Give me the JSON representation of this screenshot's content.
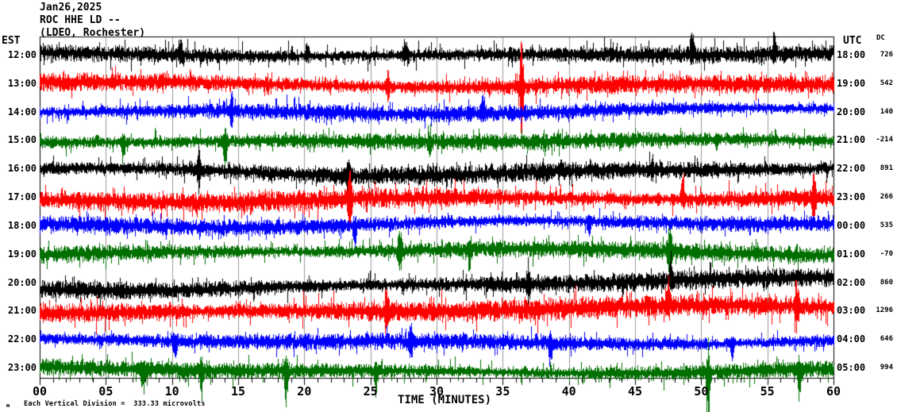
{
  "header": {
    "date": "Jan26,2025",
    "station": "ROC HHE LD --",
    "network": "(LDEO, Rochester)"
  },
  "axes": {
    "left_label": "EST",
    "right_label": "UTC",
    "dc_label": "DC",
    "x_title": "TIME (MINUTES)",
    "x_tick_labels": [
      "00",
      "05",
      "10",
      "15",
      "20",
      "25",
      "30",
      "35",
      "40",
      "45",
      "50",
      "55",
      "60"
    ],
    "x_major_step_minutes": 5,
    "x_minor_step_minutes": 1
  },
  "footer": {
    "note": "Each Vertical Division =  333.33 microvolts",
    "watermark": "м"
  },
  "colors": {
    "black": "#000000",
    "red": "#ff0000",
    "blue": "#0000ff",
    "green": "#006f00",
    "grid": "#9a9a9a",
    "axis": "#000000"
  },
  "chart_data": {
    "type": "line",
    "kind": "helicorder-seismogram",
    "title": "ROC HHE LD -- (LDEO, Rochester) Jan26,2025",
    "xlabel": "TIME (MINUTES)",
    "x_range_minutes": [
      0,
      60
    ],
    "grid": "vertical gray lines every 5 minutes",
    "vertical_division_microvolts": 333.33,
    "rows": [
      {
        "est": "12:00",
        "utc": "18:00",
        "dc": "726",
        "color": "black",
        "seed": 11,
        "base": 7.5,
        "spike": 16,
        "wander": 4,
        "events": [
          [
            10.6,
            30,
            1
          ],
          [
            20.2,
            18,
            1
          ],
          [
            27.6,
            26,
            1
          ],
          [
            49.3,
            28,
            1
          ],
          [
            55.5,
            22,
            1
          ]
        ]
      },
      {
        "est": "13:00",
        "utc": "19:00",
        "dc": "542",
        "color": "red",
        "seed": 22,
        "base": 8.5,
        "spike": 16,
        "wander": 5,
        "events": [
          [
            26.3,
            22,
            0
          ],
          [
            36.4,
            60,
            0
          ]
        ]
      },
      {
        "est": "14:00",
        "utc": "20:00",
        "dc": "140",
        "color": "blue",
        "seed": 33,
        "base": 7.5,
        "spike": 13,
        "wander": 6,
        "events": [
          [
            14.5,
            18,
            0
          ],
          [
            33.5,
            22,
            1
          ]
        ]
      },
      {
        "est": "15:00",
        "utc": "21:00",
        "dc": "-214",
        "color": "green",
        "seed": 44,
        "base": 7.5,
        "spike": 14,
        "wander": 5,
        "events": [
          [
            6.3,
            30,
            -1
          ],
          [
            14.0,
            40,
            -1
          ],
          [
            29.5,
            22,
            -1
          ]
        ]
      },
      {
        "est": "16:00",
        "utc": "22:00",
        "dc": "891",
        "color": "black",
        "seed": 55,
        "base": 8.5,
        "spike": 15,
        "wander": 9,
        "events": [
          [
            12.0,
            26,
            0
          ],
          [
            23.3,
            20,
            0
          ]
        ]
      },
      {
        "est": "17:00",
        "utc": "23:00",
        "dc": "266",
        "color": "red",
        "seed": 66,
        "base": 9,
        "spike": 18,
        "wander": 6,
        "events": [
          [
            23.4,
            40,
            0
          ],
          [
            48.6,
            34,
            1
          ],
          [
            58.5,
            26,
            0
          ]
        ]
      },
      {
        "est": "18:00",
        "utc": "00:00",
        "dc": "535",
        "color": "blue",
        "seed": 77,
        "base": 7.5,
        "spike": 13,
        "wander": 8,
        "events": [
          [
            23.8,
            26,
            -1
          ],
          [
            41.5,
            20,
            -1
          ]
        ]
      },
      {
        "est": "19:00",
        "utc": "01:00",
        "dc": "-70",
        "color": "green",
        "seed": 88,
        "base": 8,
        "spike": 15,
        "wander": 6,
        "events": [
          [
            27.2,
            34,
            0
          ],
          [
            32.5,
            24,
            -1
          ],
          [
            47.6,
            40,
            0
          ]
        ]
      },
      {
        "est": "20:00",
        "utc": "02:00",
        "dc": "860",
        "color": "black",
        "seed": 99,
        "base": 8.5,
        "spike": 15,
        "wander": 7,
        "events": [
          [
            36.9,
            24,
            0
          ],
          [
            47.7,
            30,
            1
          ]
        ]
      },
      {
        "est": "21:00",
        "utc": "03:00",
        "dc": "1296",
        "color": "red",
        "seed": 110,
        "base": 10,
        "spike": 20,
        "wander": 6,
        "events": [
          [
            26.2,
            34,
            0
          ],
          [
            47.5,
            30,
            1
          ],
          [
            57.2,
            26,
            0
          ]
        ]
      },
      {
        "est": "22:00",
        "utc": "04:00",
        "dc": "646",
        "color": "blue",
        "seed": 121,
        "base": 7.5,
        "spike": 13,
        "wander": 5,
        "events": [
          [
            10.2,
            24,
            -1
          ],
          [
            28.0,
            20,
            0
          ],
          [
            38.6,
            30,
            -1
          ],
          [
            52.3,
            24,
            -1
          ]
        ]
      },
      {
        "est": "23:00",
        "utc": "05:00",
        "dc": "994",
        "color": "green",
        "seed": 132,
        "base": 7.5,
        "spike": 15,
        "wander": 5,
        "events": [
          [
            7.8,
            28,
            -1
          ],
          [
            12.2,
            36,
            -1
          ],
          [
            18.6,
            50,
            -1
          ],
          [
            25.4,
            30,
            -1
          ],
          [
            50.5,
            95,
            -1
          ],
          [
            57.4,
            55,
            -1
          ]
        ]
      }
    ]
  }
}
